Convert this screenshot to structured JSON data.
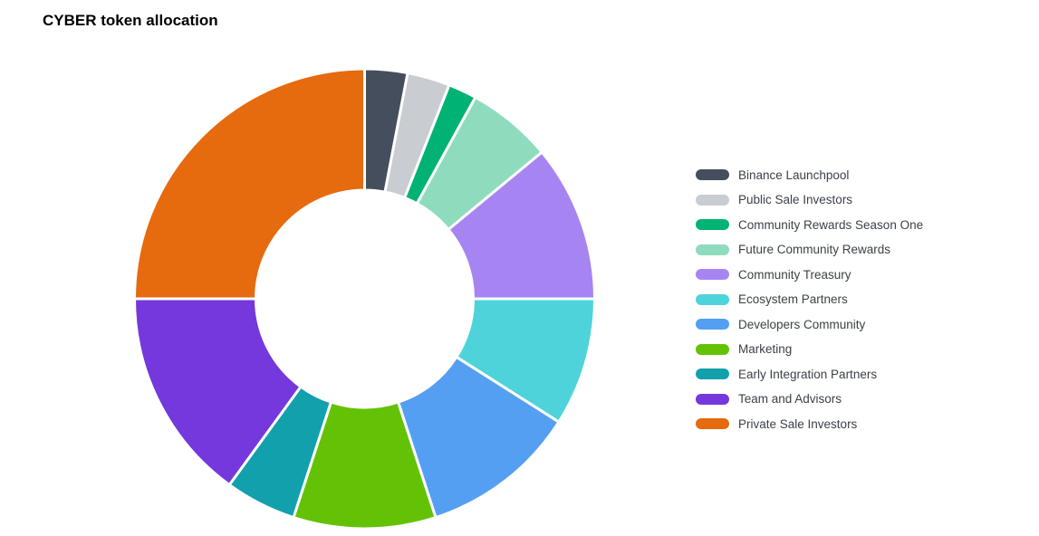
{
  "title": "CYBER token allocation",
  "chart_data": {
    "type": "pie",
    "subtype": "donut",
    "title": "CYBER token allocation",
    "legend_position": "right",
    "start_angle_deg": 0,
    "inner_radius_ratio": 0.47,
    "labels": [
      "Binance Launchpool",
      "Public Sale Investors",
      "Community Rewards Season One",
      "Future Community Rewards",
      "Community Treasury",
      "Ecosystem Partners",
      "Developers Community",
      "Marketing",
      "Early Integration Partners",
      "Team and Advisors",
      "Private Sale Investors"
    ],
    "values": [
      3,
      3,
      2,
      6,
      11,
      9,
      11,
      10,
      5,
      15,
      25
    ],
    "colors": [
      "#454e5d",
      "#c9ccd1",
      "#00b274",
      "#8edcbd",
      "#a685f2",
      "#4ed3db",
      "#549ff2",
      "#63c205",
      "#12a0ad",
      "#7438dc",
      "#e66a0e"
    ]
  }
}
